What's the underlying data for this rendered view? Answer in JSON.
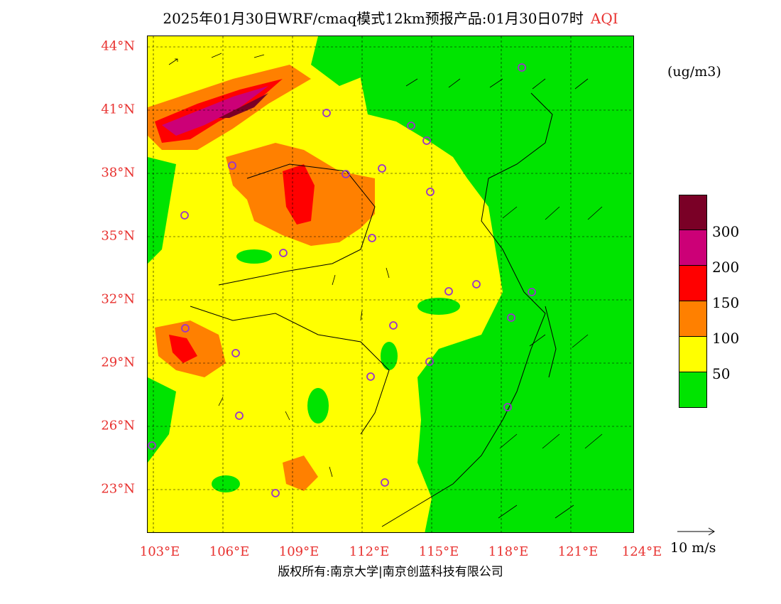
{
  "title": {
    "text": "2025年01月30日WRF/cmaq模式12km预报产品:01月30日07时",
    "variable": "AQI"
  },
  "axes": {
    "lat_labels": [
      "44°N",
      "41°N",
      "38°N",
      "35°N",
      "32°N",
      "29°N",
      "26°N",
      "23°N"
    ],
    "lon_labels": [
      "103°E",
      "106°E",
      "109°E",
      "112°E",
      "115°E",
      "118°E",
      "121°E",
      "124°E"
    ]
  },
  "units": "(ug/m3)",
  "legend": {
    "levels": [
      "300",
      "200",
      "150",
      "100",
      "50"
    ],
    "colors": [
      "#7a0026",
      "#cc0077",
      "#ff0000",
      "#ff8000",
      "#ffff00",
      "#00e400"
    ]
  },
  "wind_reference": "10 m/s",
  "copyright": "版权所有:南京大学|南京创蓝科技有限公司",
  "palette": {
    "good": "#00e400",
    "moderate": "#ffff00",
    "usg": "#ff8000",
    "unhealthy": "#ff0000",
    "very_unhealthy": "#cc0077",
    "hazardous": "#7a0026",
    "label_red": "#e8312f",
    "station_marker": "#9933cc"
  }
}
